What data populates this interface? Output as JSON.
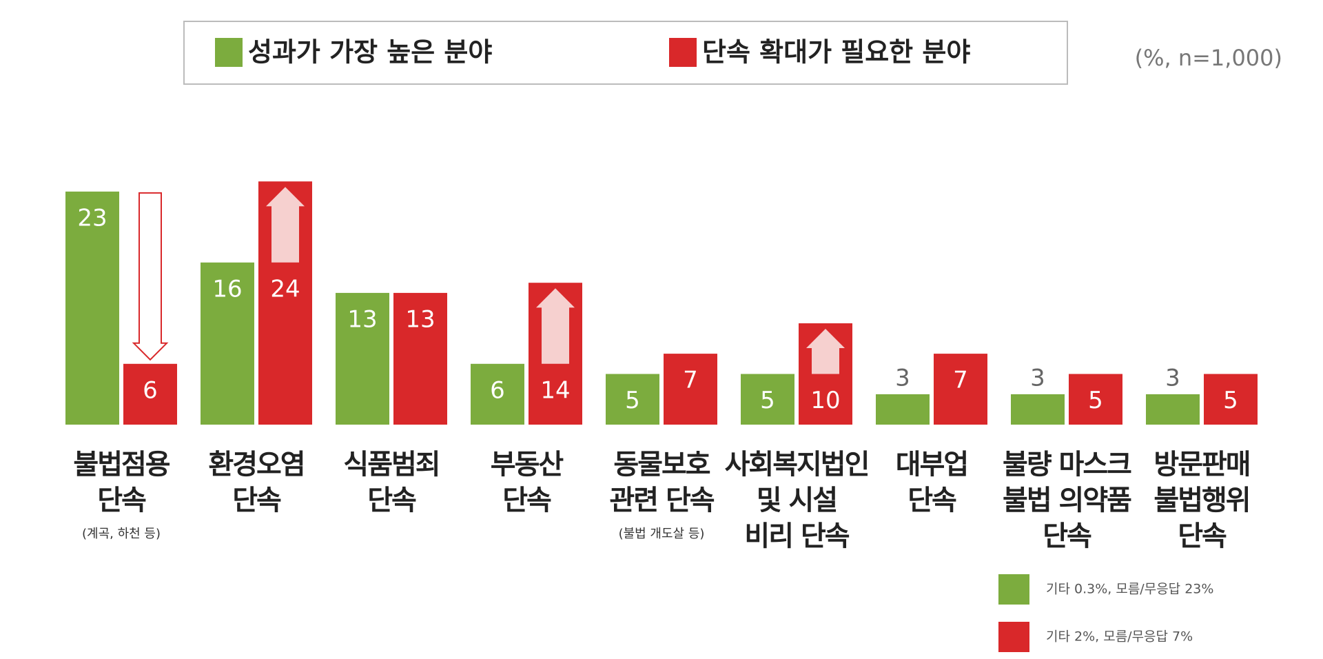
{
  "chart_data": {
    "type": "bar",
    "unit_note": "(%, n=1,000)",
    "categories": [
      "불법점용\n단속",
      "환경오염\n단속",
      "식품범죄\n단속",
      "부동산\n단속",
      "동물보호\n관련 단속",
      "사회복지법인\n및 시설\n비리 단속",
      "대부업\n단속",
      "불량 마스크\n불법 의약품\n단속",
      "방문판매\n불법행위\n단속"
    ],
    "category_notes": [
      "(계곡, 하천 등)",
      null,
      null,
      null,
      "(불법 개도살 등)",
      null,
      null,
      null,
      null
    ],
    "series": [
      {
        "name": "성과가 가장 높은 분야",
        "color": "#7cac3e",
        "values": [
          23,
          16,
          13,
          6,
          5,
          5,
          3,
          3,
          3
        ],
        "note": "기타 0.3%, 모름/무응답 23%"
      },
      {
        "name": "단속 확대가 필요한 분야",
        "color": "#d9282a",
        "values": [
          6,
          24,
          13,
          14,
          7,
          10,
          7,
          5,
          5
        ],
        "note": "기타   2%, 모름/무응답   7%"
      }
    ]
  }
}
